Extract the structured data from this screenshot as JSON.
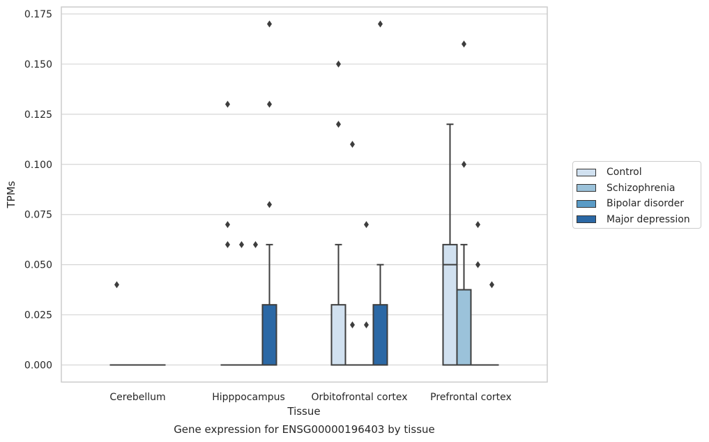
{
  "chart_data": {
    "type": "box",
    "title": "Gene expression for ENSG00000196403 by tissue",
    "xlabel": "Tissue",
    "ylabel": "TPMs",
    "ylim": [
      -0.0085,
      0.179
    ],
    "yticks": [
      "0.000",
      "0.025",
      "0.050",
      "0.075",
      "0.100",
      "0.125",
      "0.150",
      "0.175"
    ],
    "ytick_values": [
      0,
      0.025,
      0.05,
      0.075,
      0.1,
      0.125,
      0.15,
      0.175
    ],
    "grid": "horizontal",
    "legend_placement": "right",
    "categories": [
      "Cerebellum",
      "Hipppocampus",
      "Orbitofrontal cortex",
      "Prefrontal cortex"
    ],
    "series": [
      {
        "name": "Control",
        "color": "#d1e1f0",
        "boxes": [
          {
            "q1": 0,
            "median": 0,
            "q3": 0,
            "whisker_low": 0,
            "whisker_high": 0,
            "outliers": [
              0.04
            ]
          },
          {
            "q1": 0,
            "median": 0,
            "q3": 0,
            "whisker_low": 0,
            "whisker_high": 0,
            "outliers": [
              0.06,
              0.07,
              0.13
            ]
          },
          {
            "q1": 0,
            "median": 0,
            "q3": 0.03,
            "whisker_low": 0,
            "whisker_high": 0.06,
            "outliers": [
              0.12,
              0.15
            ]
          },
          {
            "q1": 0,
            "median": 0.05,
            "q3": 0.06,
            "whisker_low": 0,
            "whisker_high": 0.12,
            "outliers": []
          }
        ]
      },
      {
        "name": "Schizophrenia",
        "color": "#9bc2da",
        "boxes": [
          {
            "q1": 0,
            "median": 0,
            "q3": 0,
            "whisker_low": 0,
            "whisker_high": 0,
            "outliers": []
          },
          {
            "q1": 0,
            "median": 0,
            "q3": 0,
            "whisker_low": 0,
            "whisker_high": 0,
            "outliers": [
              0.06
            ]
          },
          {
            "q1": 0,
            "median": 0,
            "q3": 0,
            "whisker_low": 0,
            "whisker_high": 0,
            "outliers": [
              0.02,
              0.11
            ]
          },
          {
            "q1": 0,
            "median": 0,
            "q3": 0.0375,
            "whisker_low": 0,
            "whisker_high": 0.06,
            "outliers": [
              0.1,
              0.16
            ]
          }
        ]
      },
      {
        "name": "Bipolar disorder",
        "color": "#5a9bc6",
        "boxes": [
          {
            "q1": 0,
            "median": 0,
            "q3": 0,
            "whisker_low": 0,
            "whisker_high": 0,
            "outliers": []
          },
          {
            "q1": 0,
            "median": 0,
            "q3": 0,
            "whisker_low": 0,
            "whisker_high": 0,
            "outliers": [
              0.06
            ]
          },
          {
            "q1": 0,
            "median": 0,
            "q3": 0,
            "whisker_low": 0,
            "whisker_high": 0,
            "outliers": [
              0.02,
              0.07
            ]
          },
          {
            "q1": 0,
            "median": 0,
            "q3": 0,
            "whisker_low": 0,
            "whisker_high": 0,
            "outliers": [
              0.05,
              0.07
            ]
          }
        ]
      },
      {
        "name": "Major depression",
        "color": "#2b68a5",
        "boxes": [
          {
            "q1": 0,
            "median": 0,
            "q3": 0,
            "whisker_low": 0,
            "whisker_high": 0,
            "outliers": []
          },
          {
            "q1": 0,
            "median": 0,
            "q3": 0.03,
            "whisker_low": 0,
            "whisker_high": 0.06,
            "outliers": [
              0.08,
              0.13,
              0.17
            ]
          },
          {
            "q1": 0,
            "median": 0,
            "q3": 0.03,
            "whisker_low": 0,
            "whisker_high": 0.05,
            "outliers": [
              0.17
            ]
          },
          {
            "q1": 0,
            "median": 0,
            "q3": 0,
            "whisker_low": 0,
            "whisker_high": 0,
            "outliers": [
              0.04
            ]
          }
        ]
      }
    ]
  }
}
